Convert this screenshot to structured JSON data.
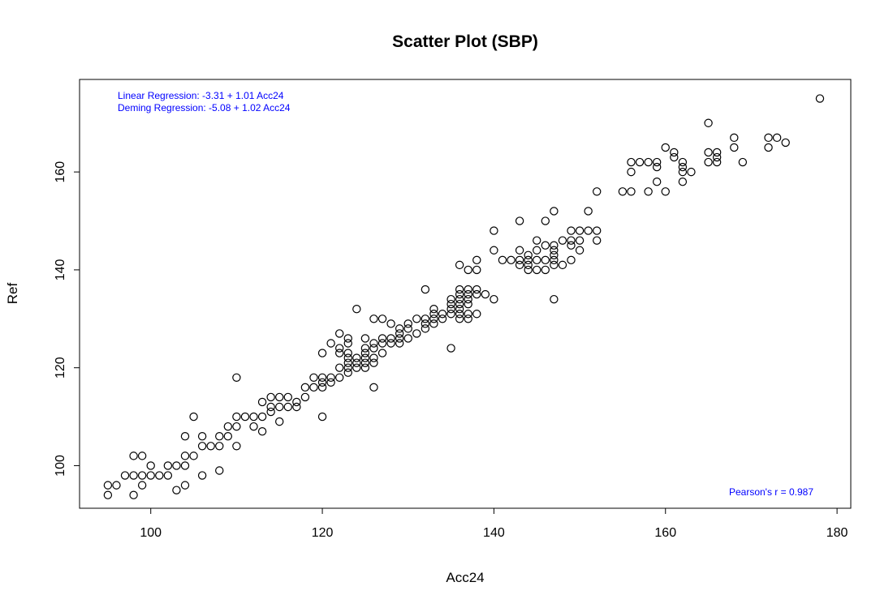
{
  "chart_data": {
    "type": "scatter",
    "title": "Scatter Plot (SBP)",
    "xlabel": "Acc24",
    "ylabel": "Ref",
    "xlim": [
      91.7,
      181.6
    ],
    "ylim": [
      91.3,
      178.9
    ],
    "xticks": [
      100,
      120,
      140,
      160,
      180
    ],
    "yticks": [
      100,
      120,
      140,
      160
    ],
    "grid": false,
    "annotations": {
      "linear": "Linear Regression: -3.31 + 1.01 Acc24",
      "deming": "Deming Regression: -5.08 + 1.02 Acc24",
      "pearson": "Pearson's r = 0.987"
    },
    "colors": {
      "annotation": "#0000FF",
      "points": "#000000"
    },
    "points": [
      [
        95,
        94
      ],
      [
        95,
        96
      ],
      [
        96,
        96
      ],
      [
        97,
        98
      ],
      [
        98,
        102
      ],
      [
        98,
        98
      ],
      [
        98,
        94
      ],
      [
        99,
        102
      ],
      [
        99,
        98
      ],
      [
        99,
        96
      ],
      [
        100,
        100
      ],
      [
        100,
        98
      ],
      [
        101,
        98
      ],
      [
        102,
        98
      ],
      [
        102,
        100
      ],
      [
        103,
        100
      ],
      [
        103,
        95
      ],
      [
        104,
        106
      ],
      [
        104,
        102
      ],
      [
        104,
        100
      ],
      [
        104,
        96
      ],
      [
        105,
        110
      ],
      [
        105,
        102
      ],
      [
        106,
        106
      ],
      [
        106,
        104
      ],
      [
        106,
        98
      ],
      [
        107,
        104
      ],
      [
        108,
        106
      ],
      [
        108,
        104
      ],
      [
        108,
        99
      ],
      [
        109,
        108
      ],
      [
        109,
        106
      ],
      [
        110,
        118
      ],
      [
        110,
        110
      ],
      [
        110,
        108
      ],
      [
        110,
        104
      ],
      [
        111,
        110
      ],
      [
        112,
        110
      ],
      [
        112,
        108
      ],
      [
        113,
        113
      ],
      [
        113,
        110
      ],
      [
        113,
        107
      ],
      [
        114,
        114
      ],
      [
        114,
        112
      ],
      [
        114,
        111
      ],
      [
        115,
        114
      ],
      [
        115,
        112
      ],
      [
        115,
        109
      ],
      [
        116,
        114
      ],
      [
        116,
        112
      ],
      [
        117,
        113
      ],
      [
        117,
        112
      ],
      [
        118,
        116
      ],
      [
        118,
        114
      ],
      [
        119,
        118
      ],
      [
        119,
        116
      ],
      [
        120,
        123
      ],
      [
        120,
        118
      ],
      [
        120,
        117
      ],
      [
        120,
        116
      ],
      [
        120,
        110
      ],
      [
        121,
        125
      ],
      [
        121,
        118
      ],
      [
        121,
        117
      ],
      [
        122,
        127
      ],
      [
        122,
        124
      ],
      [
        122,
        123
      ],
      [
        122,
        120
      ],
      [
        122,
        118
      ],
      [
        123,
        126
      ],
      [
        123,
        125
      ],
      [
        123,
        123
      ],
      [
        123,
        122
      ],
      [
        123,
        121
      ],
      [
        123,
        120
      ],
      [
        123,
        119
      ],
      [
        124,
        132
      ],
      [
        124,
        122
      ],
      [
        124,
        121
      ],
      [
        124,
        120
      ],
      [
        125,
        126
      ],
      [
        125,
        124
      ],
      [
        125,
        123
      ],
      [
        125,
        122
      ],
      [
        125,
        121
      ],
      [
        125,
        120
      ],
      [
        126,
        130
      ],
      [
        126,
        125
      ],
      [
        126,
        124
      ],
      [
        126,
        122
      ],
      [
        126,
        121
      ],
      [
        126,
        116
      ],
      [
        127,
        130
      ],
      [
        127,
        126
      ],
      [
        127,
        125
      ],
      [
        127,
        123
      ],
      [
        128,
        129
      ],
      [
        128,
        126
      ],
      [
        128,
        125
      ],
      [
        129,
        128
      ],
      [
        129,
        127
      ],
      [
        129,
        126
      ],
      [
        129,
        125
      ],
      [
        130,
        129
      ],
      [
        130,
        128
      ],
      [
        130,
        126
      ],
      [
        131,
        130
      ],
      [
        131,
        127
      ],
      [
        132,
        136
      ],
      [
        132,
        130
      ],
      [
        132,
        129
      ],
      [
        132,
        128
      ],
      [
        133,
        132
      ],
      [
        133,
        131
      ],
      [
        133,
        130
      ],
      [
        133,
        129
      ],
      [
        134,
        131
      ],
      [
        134,
        130
      ],
      [
        135,
        134
      ],
      [
        135,
        133
      ],
      [
        135,
        132
      ],
      [
        135,
        131
      ],
      [
        135,
        124
      ],
      [
        136,
        141
      ],
      [
        136,
        136
      ],
      [
        136,
        135
      ],
      [
        136,
        134
      ],
      [
        136,
        133
      ],
      [
        136,
        132
      ],
      [
        136,
        131
      ],
      [
        136,
        130
      ],
      [
        137,
        140
      ],
      [
        137,
        136
      ],
      [
        137,
        135
      ],
      [
        137,
        134
      ],
      [
        137,
        133
      ],
      [
        137,
        131
      ],
      [
        137,
        130
      ],
      [
        138,
        142
      ],
      [
        138,
        140
      ],
      [
        138,
        136
      ],
      [
        138,
        135
      ],
      [
        138,
        131
      ],
      [
        139,
        135
      ],
      [
        140,
        148
      ],
      [
        140,
        144
      ],
      [
        140,
        134
      ],
      [
        141,
        142
      ],
      [
        142,
        142
      ],
      [
        143,
        150
      ],
      [
        143,
        144
      ],
      [
        143,
        142
      ],
      [
        143,
        141
      ],
      [
        144,
        143
      ],
      [
        144,
        142
      ],
      [
        144,
        141
      ],
      [
        144,
        140
      ],
      [
        145,
        146
      ],
      [
        145,
        144
      ],
      [
        145,
        142
      ],
      [
        145,
        140
      ],
      [
        146,
        150
      ],
      [
        146,
        145
      ],
      [
        146,
        142
      ],
      [
        146,
        140
      ],
      [
        147,
        152
      ],
      [
        147,
        145
      ],
      [
        147,
        144
      ],
      [
        147,
        143
      ],
      [
        147,
        142
      ],
      [
        147,
        141
      ],
      [
        147,
        134
      ],
      [
        148,
        146
      ],
      [
        148,
        141
      ],
      [
        149,
        148
      ],
      [
        149,
        146
      ],
      [
        149,
        145
      ],
      [
        149,
        142
      ],
      [
        150,
        148
      ],
      [
        150,
        146
      ],
      [
        150,
        144
      ],
      [
        151,
        152
      ],
      [
        151,
        148
      ],
      [
        152,
        156
      ],
      [
        152,
        148
      ],
      [
        152,
        146
      ],
      [
        155,
        156
      ],
      [
        156,
        162
      ],
      [
        156,
        160
      ],
      [
        156,
        156
      ],
      [
        157,
        162
      ],
      [
        158,
        162
      ],
      [
        158,
        156
      ],
      [
        159,
        162
      ],
      [
        159,
        161
      ],
      [
        159,
        158
      ],
      [
        160,
        165
      ],
      [
        160,
        156
      ],
      [
        161,
        164
      ],
      [
        161,
        163
      ],
      [
        162,
        162
      ],
      [
        162,
        161
      ],
      [
        162,
        160
      ],
      [
        162,
        158
      ],
      [
        163,
        160
      ],
      [
        165,
        170
      ],
      [
        165,
        164
      ],
      [
        165,
        162
      ],
      [
        166,
        164
      ],
      [
        166,
        163
      ],
      [
        166,
        162
      ],
      [
        168,
        167
      ],
      [
        168,
        165
      ],
      [
        169,
        162
      ],
      [
        172,
        167
      ],
      [
        172,
        165
      ],
      [
        173,
        167
      ],
      [
        174,
        166
      ],
      [
        178,
        175
      ]
    ]
  }
}
